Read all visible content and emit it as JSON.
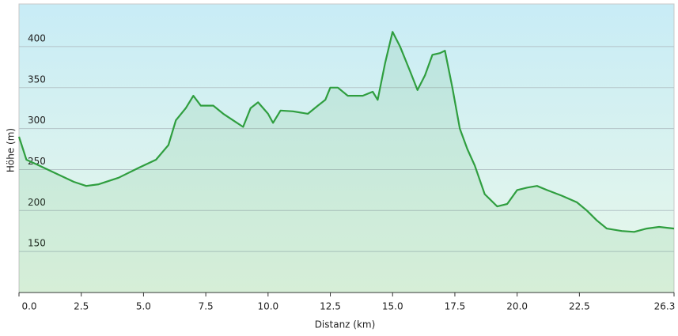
{
  "chart_data": {
    "type": "area",
    "x_label": "Distanz  (km)",
    "y_label": "Höhe (m)",
    "color": "#2f9e3f",
    "x": [
      0,
      0.3,
      0.8,
      1.5,
      2.2,
      2.7,
      3.2,
      4,
      4.8,
      5.5,
      6,
      6.3,
      6.7,
      7.0,
      7.3,
      7.8,
      8.2,
      8.7,
      9.0,
      9.3,
      9.6,
      10.0,
      10.2,
      10.5,
      11,
      11.6,
      12.0,
      12.3,
      12.5,
      12.8,
      13.2,
      13.8,
      14.2,
      14.4,
      14.7,
      15.0,
      15.3,
      15.7,
      16.0,
      16.3,
      16.6,
      16.9,
      17.1,
      17.4,
      17.7,
      18.0,
      18.3,
      18.7,
      19.2,
      19.6,
      20.0,
      20.4,
      20.8,
      21.2,
      21.8,
      22.4,
      22.8,
      23.2,
      23.6,
      24.2,
      24.7,
      25.2,
      25.7,
      26.3
    ],
    "y": [
      290,
      262,
      255,
      245,
      235,
      230,
      232,
      240,
      252,
      262,
      280,
      310,
      325,
      340,
      328,
      328,
      318,
      308,
      302,
      325,
      332,
      318,
      307,
      322,
      321,
      318,
      328,
      335,
      350,
      350,
      340,
      340,
      345,
      335,
      380,
      418,
      400,
      370,
      347,
      365,
      390,
      392,
      395,
      350,
      300,
      275,
      255,
      220,
      205,
      208,
      225,
      228,
      230,
      225,
      218,
      210,
      200,
      188,
      178,
      175,
      174,
      178,
      180,
      178
    ],
    "xlim": [
      0,
      26.3
    ],
    "ylim": [
      100,
      452
    ],
    "xticks": [
      {
        "value": 0,
        "label": "0.0"
      },
      2.5,
      {
        "value": 5,
        "label": "5.0"
      },
      7.5,
      {
        "value": 10,
        "label": "10.0"
      },
      12.5,
      {
        "value": 15,
        "label": "15.0"
      },
      17.5,
      {
        "value": 20,
        "label": "20.0"
      },
      22.5,
      26.3
    ],
    "yticks": [
      150,
      200,
      250,
      300,
      350,
      400
    ],
    "grid": true
  }
}
